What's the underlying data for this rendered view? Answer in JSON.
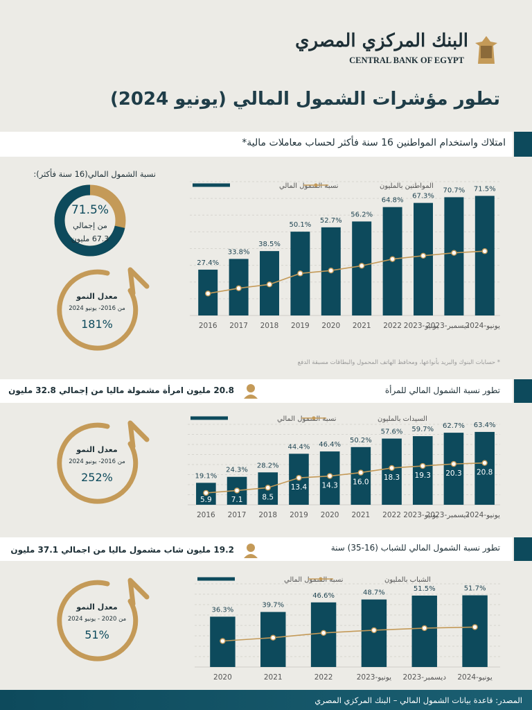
{
  "header": {
    "bank_ar": "البنك المركزي المصري",
    "bank_en": "CENTRAL BANK OF EGYPT",
    "title": "تطور مؤشرات الشمول المالي (يونيو 2024)"
  },
  "section1": {
    "heading": "امتلاك واستخدام المواطنين 16 سنة فأكثر لحساب معاملات مالية*",
    "donut": {
      "title": "نسبة الشمول المالي(16 سنة فأكثر):",
      "value": 71.5,
      "value_label": "71.5%",
      "line1": "من إجمالي",
      "line2": "67.3 مليون"
    },
    "growth": {
      "label": "معدل النمو",
      "period": "من 2016- يونيو 2024",
      "rate": "181%"
    },
    "footnote": "* حسابات البنوك والبريد بأنواعها، ومحافظ الهاتف المحمول والبطاقات مسبقة الدفع"
  },
  "section2": {
    "heading": "تطور نسبة الشمول المالي للمرأة",
    "highlight": "20.8",
    "summary": "مليون امرأة مشمولة ماليا  من إجمالي 32.8 مليون",
    "growth": {
      "label": "معدل النمو",
      "period": "من 2016- يونيو 2024",
      "rate": "252%"
    }
  },
  "section3": {
    "heading": "تطور نسبة  الشمول المالي للشباب (16-35) سنة",
    "highlight": "19.2",
    "summary": "مليون شاب مشمول ماليا  من اجمالي 37.1 مليون",
    "growth": {
      "label": "معدل النمو",
      "period": "من 2020 - يونيو 2024",
      "rate": "51%"
    }
  },
  "footer": "المصدر: قاعدة بيانات الشمول المالي – البنك المركزي المصري",
  "chart_data": [
    {
      "type": "combo",
      "grid": true,
      "ylim": [
        0,
        80
      ],
      "y2lim": [
        0,
        140
      ],
      "categories": [
        "2016",
        "2017",
        "2018",
        "2019",
        "2020",
        "2021",
        "2022",
        "يونيو-2023",
        "ديسمبر-2023",
        "يونيو-2024"
      ],
      "series": [
        {
          "name": "نسبة الشمول المالي",
          "color": "#0d4a5c",
          "values": [
            27.4,
            33.8,
            38.5,
            50.1,
            52.7,
            56.2,
            64.8,
            67.3,
            70.7,
            71.5
          ],
          "value_labels": [
            "27.4%",
            "33.8%",
            "38.5%",
            "50.1%",
            "52.7%",
            "56.2%",
            "64.8%",
            "67.3%",
            "70.7%",
            "71.5%"
          ]
        },
        {
          "name": "المواطنين بالمليون",
          "color": "#c49a58",
          "axis": "y2",
          "values": [
            23,
            28.5,
            32.5,
            44,
            47,
            52,
            59,
            62.5,
            65.5,
            67.3
          ]
        }
      ]
    },
    {
      "type": "combo",
      "grid": true,
      "ylim": [
        0,
        70
      ],
      "y2lim": [
        0,
        40
      ],
      "categories": [
        "2016",
        "2017",
        "2018",
        "2019",
        "2020",
        "2021",
        "2022",
        "يونيو-2023",
        "ديسمبر-2023",
        "يونيو-2024"
      ],
      "series": [
        {
          "name": "نسبة الشمول المالي",
          "color": "#0d4a5c",
          "values": [
            19.1,
            24.3,
            28.2,
            44.4,
            46.4,
            50.2,
            57.6,
            59.7,
            62.7,
            63.4
          ],
          "value_labels": [
            "19.1%",
            "24.3%",
            "28.2%",
            "44.4%",
            "46.4%",
            "50.2%",
            "57.6%",
            "59.7%",
            "62.7%",
            "63.4%"
          ]
        },
        {
          "name": "السيدات بالمليون",
          "color": "#c49a58",
          "axis": "y2",
          "show_values": true,
          "values": [
            5.9,
            7.1,
            8.5,
            13.4,
            14.3,
            16.0,
            18.3,
            19.3,
            20.3,
            20.8
          ],
          "value_labels": [
            "5.9",
            "7.1",
            "8.5",
            "13.4",
            "14.3",
            "16.0",
            "18.3",
            "19.3",
            "20.3",
            "20.8"
          ]
        }
      ]
    },
    {
      "type": "combo",
      "grid": true,
      "ylim": [
        0,
        60
      ],
      "y2lim": [
        0,
        40
      ],
      "categories": [
        "2020",
        "2021",
        "2022",
        "يونيو-2023",
        "ديسمبر-2023",
        "يونيو-2024"
      ],
      "series": [
        {
          "name": "نسبة الشمول المالي",
          "color": "#0d4a5c",
          "values": [
            36.3,
            39.7,
            46.6,
            48.7,
            51.5,
            51.7
          ],
          "value_labels": [
            "36.3%",
            "39.7%",
            "46.6%",
            "48.7%",
            "51.5%",
            "51.7%"
          ]
        },
        {
          "name": "الشباب بالمليون",
          "color": "#c49a58",
          "axis": "y2",
          "values": [
            12.5,
            14.1,
            16.4,
            17.7,
            18.7,
            19.2
          ]
        }
      ]
    }
  ]
}
